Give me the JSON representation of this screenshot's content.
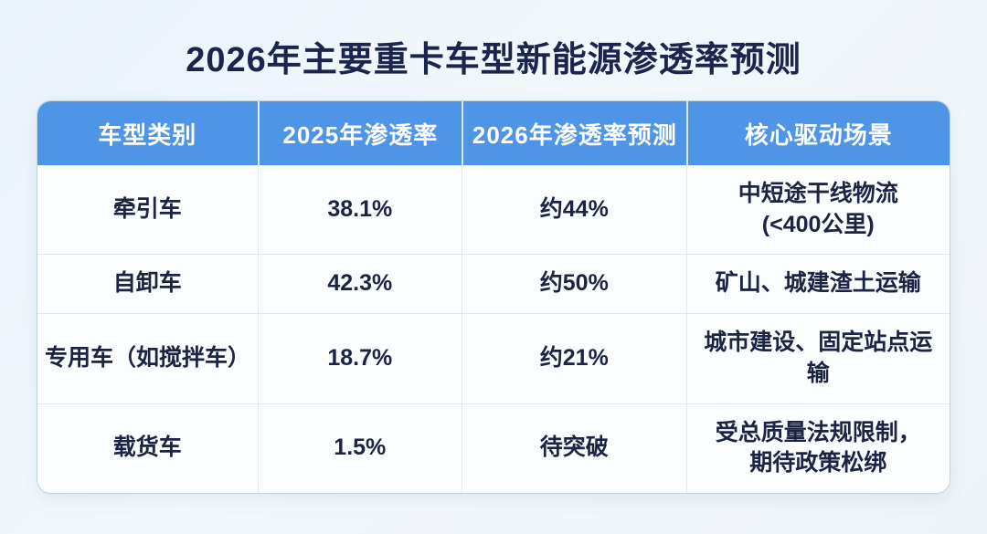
{
  "page": {
    "title": "2026年主要重卡车型新能源渗透率预测"
  },
  "colors": {
    "header_bg": "#4e95e8",
    "header_text": "#ffffff",
    "title_text": "#1c2450",
    "cell_text": "#1c2344",
    "row_bg": "#fcfdff",
    "divider": "#dde6ee",
    "page_bg": "#eef3f9"
  },
  "table": {
    "columns": [
      "车型类别",
      "2025年渗透率",
      "2026年渗透率预测",
      "核心驱动场景"
    ],
    "rows": [
      {
        "category": "牵引车",
        "rate_2025": "38.1%",
        "rate_2026": "约44%",
        "scenario_line1": "中短途干线物流",
        "scenario_line2": "(<400公里)"
      },
      {
        "category": "自卸车",
        "rate_2025": "42.3%",
        "rate_2026": "约50%",
        "scenario_line1": "矿山、城建渣土运输",
        "scenario_line2": ""
      },
      {
        "category": "专用车（如搅拌车）",
        "rate_2025": "18.7%",
        "rate_2026": "约21%",
        "scenario_line1": "城市建设、固定站点运输",
        "scenario_line2": ""
      },
      {
        "category": "载货车",
        "rate_2025": "1.5%",
        "rate_2026": "待突破",
        "scenario_line1": "受总质量法规限制，",
        "scenario_line2": "期待政策松绑"
      }
    ]
  },
  "chart_data": {
    "type": "table",
    "title": "2026年主要重卡车型新能源渗透率预测",
    "columns": [
      "车型类别",
      "2025年渗透率",
      "2026年渗透率预测",
      "核心驱动场景"
    ],
    "rows": [
      [
        "牵引车",
        "38.1%",
        "约44%",
        "中短途干线物流 (<400公里)"
      ],
      [
        "自卸车",
        "42.3%",
        "约50%",
        "矿山、城建渣土运输"
      ],
      [
        "专用车（如搅拌车）",
        "18.7%",
        "约21%",
        "城市建设、固定站点运输"
      ],
      [
        "载货车",
        "1.5%",
        "待突破",
        "受总质量法规限制，期待政策松绑"
      ]
    ],
    "penetration_2025_pct": [
      38.1,
      42.3,
      18.7,
      1.5
    ],
    "penetration_2026_forecast_pct": [
      44,
      50,
      21,
      null
    ]
  }
}
